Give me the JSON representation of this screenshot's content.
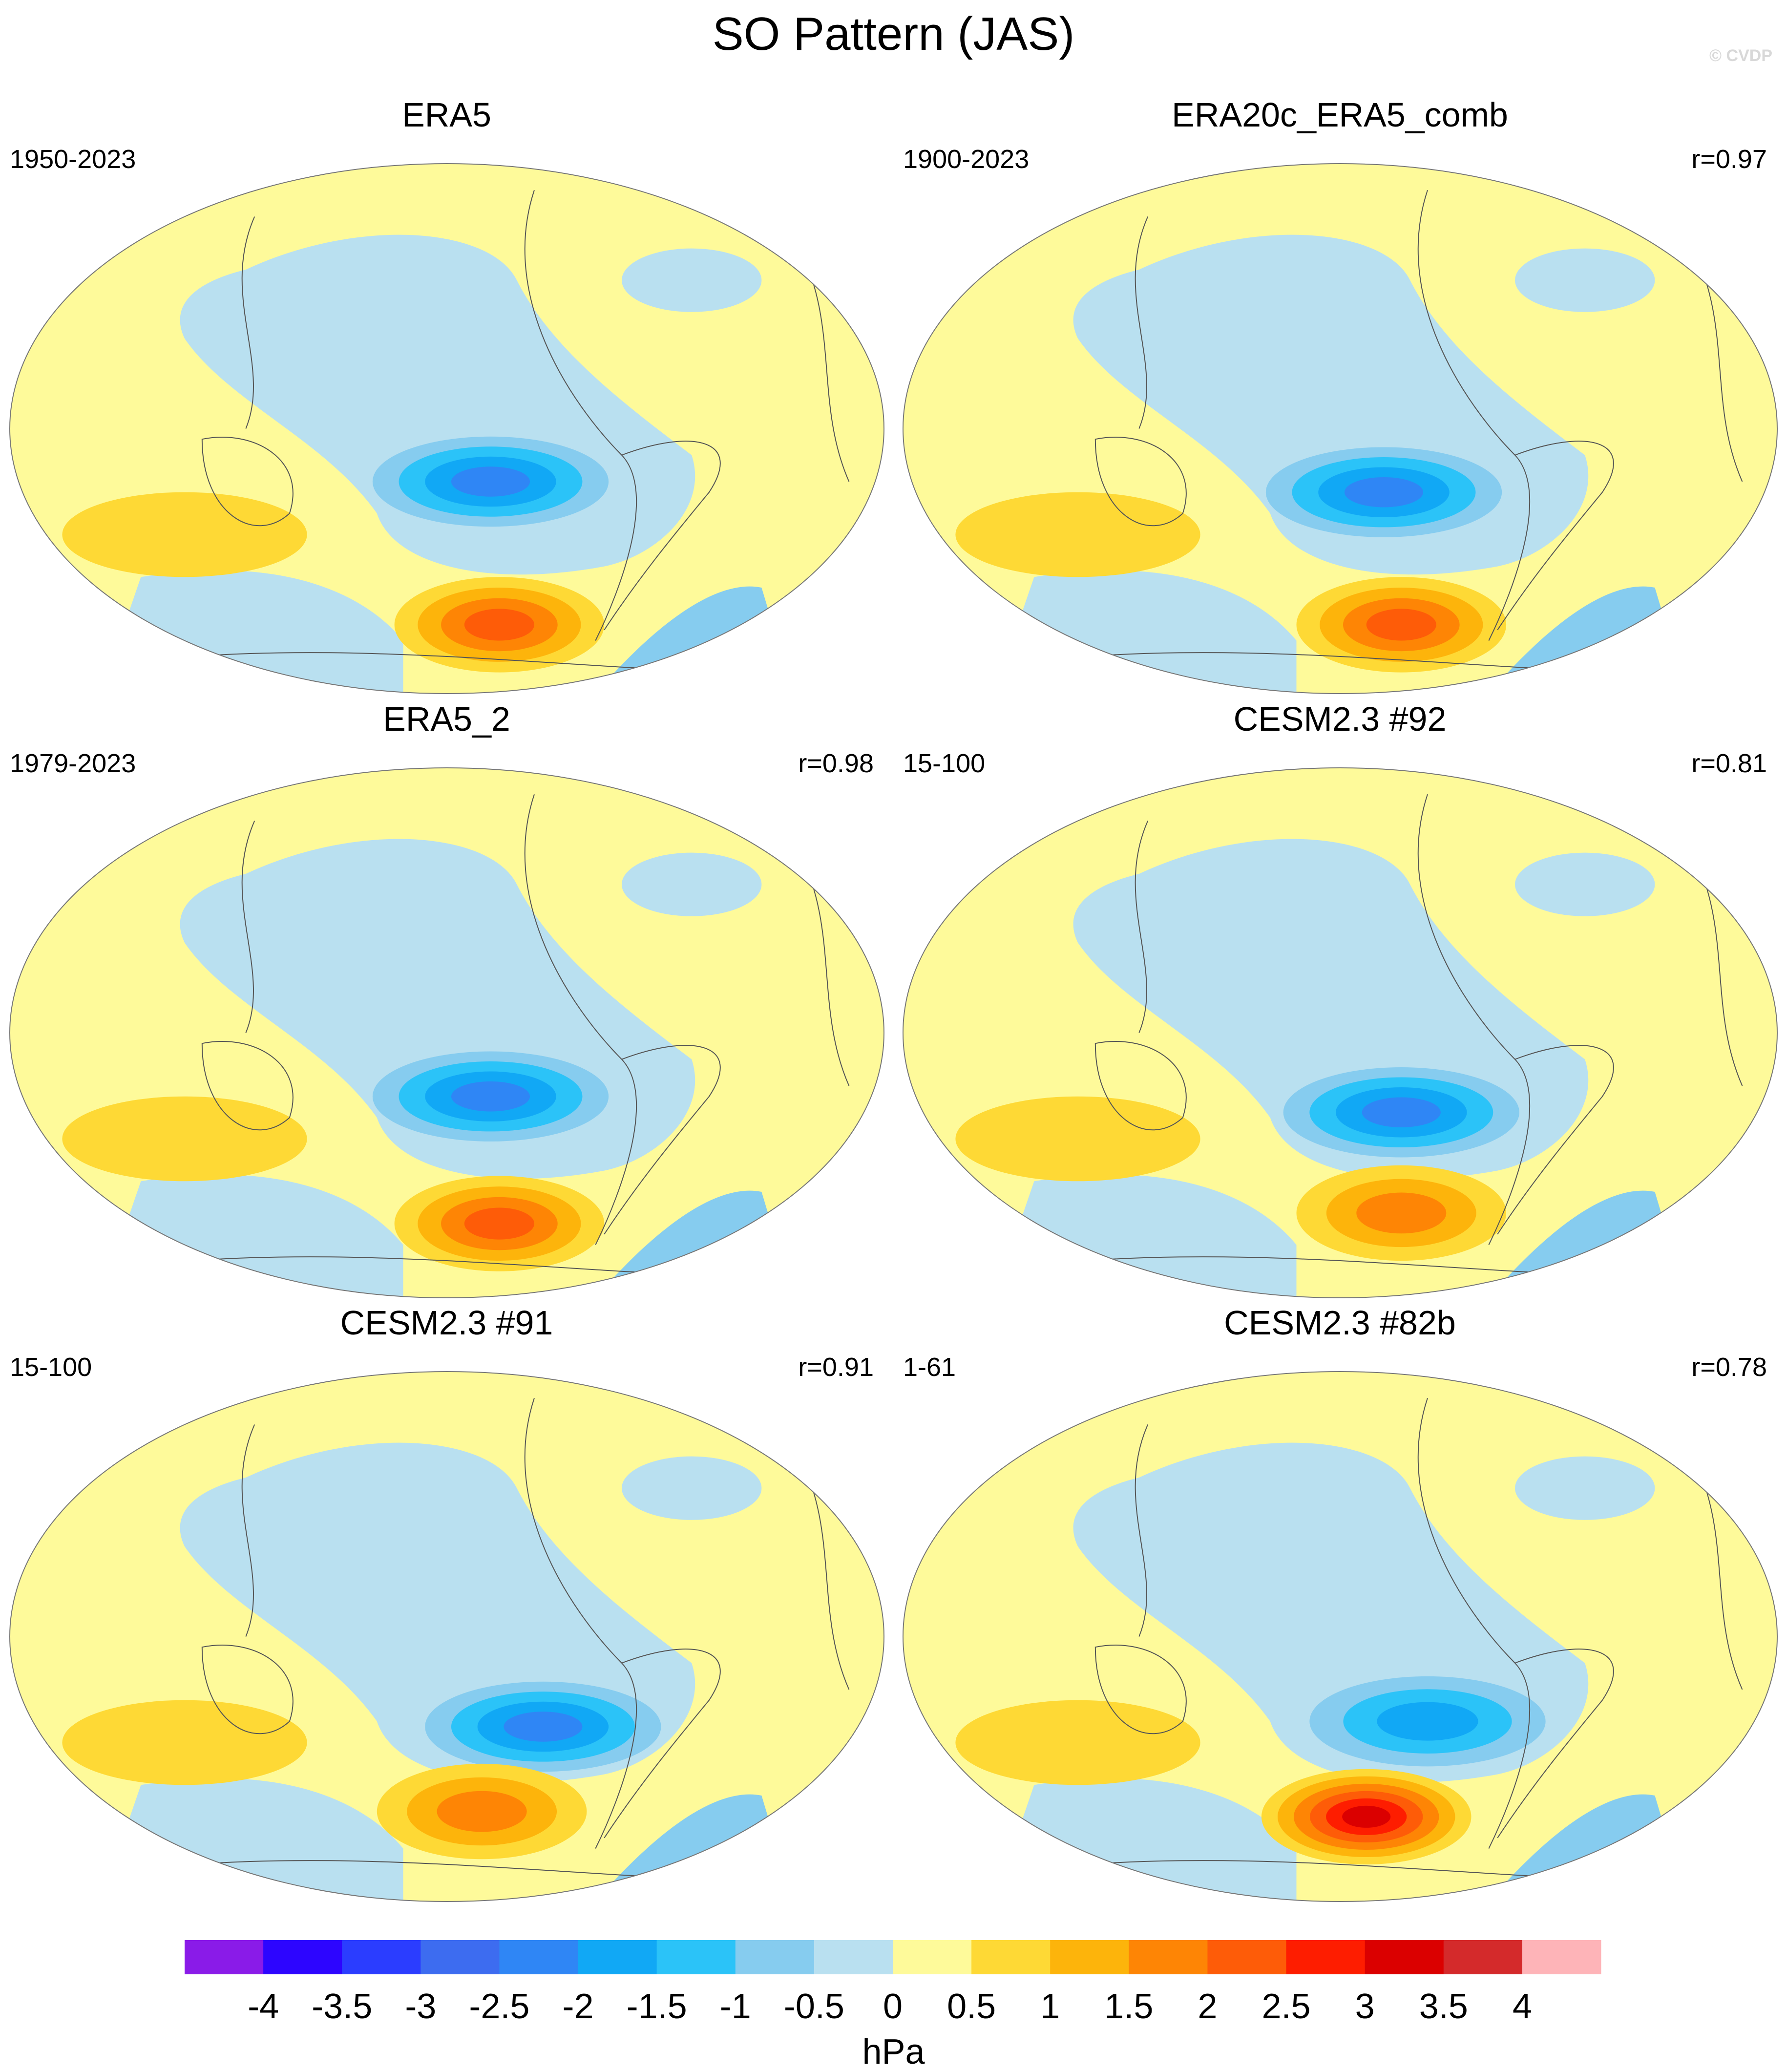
{
  "title": "SO Pattern (JAS)",
  "watermark": "© CVDP",
  "panels": [
    {
      "title": "ERA5",
      "left_label": "1950-2023",
      "right_label": "",
      "pattern": {
        "low": -2.4,
        "high": 2.0,
        "lowX": 0.55,
        "lowY": 0.6,
        "highX": 0.56,
        "highY": 0.87
      }
    },
    {
      "title": "ERA20c_ERA5_comb",
      "left_label": "1900-2023",
      "right_label": "r=0.97",
      "pattern": {
        "low": -2.4,
        "high": 2.4,
        "lowX": 0.55,
        "lowY": 0.62,
        "highX": 0.57,
        "highY": 0.87
      }
    },
    {
      "title": "ERA5_2",
      "left_label": "1979-2023",
      "right_label": "r=0.98",
      "pattern": {
        "low": -2.2,
        "high": 2.2,
        "lowX": 0.55,
        "lowY": 0.62,
        "highX": 0.56,
        "highY": 0.86
      }
    },
    {
      "title": "CESM2.3 #92",
      "left_label": "15-100",
      "right_label": "r=0.81",
      "pattern": {
        "low": -2.0,
        "high": 1.7,
        "lowX": 0.57,
        "lowY": 0.65,
        "highX": 0.57,
        "highY": 0.84
      }
    },
    {
      "title": "CESM2.3 #91",
      "left_label": "15-100",
      "right_label": "r=0.91",
      "pattern": {
        "low": -2.3,
        "high": 1.7,
        "lowX": 0.61,
        "lowY": 0.67,
        "highX": 0.54,
        "highY": 0.83
      }
    },
    {
      "title": "CESM2.3 #82b",
      "left_label": "1-61",
      "right_label": "r=0.78",
      "pattern": {
        "low": -1.9,
        "high": 3.0,
        "lowX": 0.6,
        "lowY": 0.66,
        "highX": 0.53,
        "highY": 0.84
      }
    }
  ],
  "colorbar": {
    "colors": [
      "#8a1be8",
      "#2d05ff",
      "#2b3dff",
      "#3d6cf0",
      "#2f86f5",
      "#11a8f5",
      "#2bc3f8",
      "#86ccef",
      "#b9e0f0",
      "#fefa9a",
      "#fed935",
      "#fdb40b",
      "#fe8505",
      "#fe5c08",
      "#fe1d00",
      "#db0000",
      "#d42a2b",
      "#feb4b8"
    ],
    "labels": [
      "-4",
      "-3.5",
      "-3",
      "-2.5",
      "-2",
      "-1.5",
      "-1",
      "-0.5",
      "0",
      "0.5",
      "1",
      "1.5",
      "2",
      "2.5",
      "3",
      "3.5",
      "4"
    ],
    "unit": "hPa"
  }
}
